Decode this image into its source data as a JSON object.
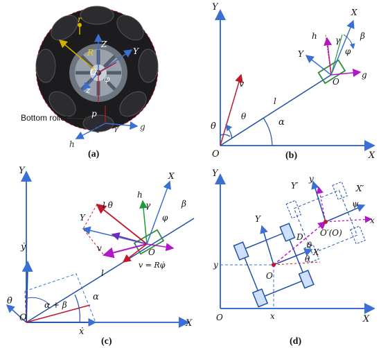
{
  "panels": {
    "a": {
      "caption": "(a)",
      "labels": {
        "r": "r",
        "R": "R",
        "Z": "Z",
        "Y": "Y",
        "O": "O",
        "phi": "φ",
        "z": "z",
        "p": "p",
        "Q": "Q",
        "gamma": "γ",
        "g": "g",
        "h": "h",
        "bottom_roller": "Bottom roller"
      }
    },
    "b": {
      "caption": "(b)",
      "labels": {
        "Y": "Y",
        "X": "X",
        "O": "O",
        "Xi": "X",
        "Yi": "Y",
        "hi": "h",
        "gi": "g",
        "gamma": "γ",
        "beta": "β",
        "phi": "φ",
        "Oi": "O",
        "vo": "v",
        "theta_o": "θ",
        "li": "l",
        "alpha": "α",
        "theta_dot": "θ̇"
      }
    },
    "c": {
      "caption": "(c)",
      "labels": {
        "Y": "Y",
        "X": "X",
        "O": "O",
        "Xi": "X",
        "Yi": "Y",
        "li_theta": "l θ̇",
        "hi": "h",
        "gamma": "γ",
        "beta": "β",
        "phi": "φ",
        "Oi": "O",
        "vgi": "v",
        "vi_eq": "v = Rφ̇",
        "li": "l",
        "alpha": "α",
        "ydot": "ẏ",
        "xdot": "ẋ",
        "theta_dot": "θ̇",
        "alpha_beta": "α + β"
      }
    },
    "d": {
      "caption": "(d)",
      "labels": {
        "YI": "Y",
        "XI": "X",
        "OI": "O",
        "Y": "Y",
        "X": "X",
        "O": "O",
        "yI": "y",
        "xI": "x",
        "D": "D",
        "theta_d": "ϑ",
        "theta": "θ",
        "Yp": "Y′",
        "Xp": "X′",
        "yr": "y",
        "xr": "x",
        "psi": "ψ",
        "Op": "O′(O)"
      }
    }
  },
  "colors": {
    "axis": "#3b6fd1",
    "frame_blue": "#1f4fa8",
    "red": "#c0182b",
    "magenta": "#b216c9",
    "purple": "#6b2fc0",
    "green": "#1f9a3a",
    "roller_box": "#2e8b3a"
  }
}
